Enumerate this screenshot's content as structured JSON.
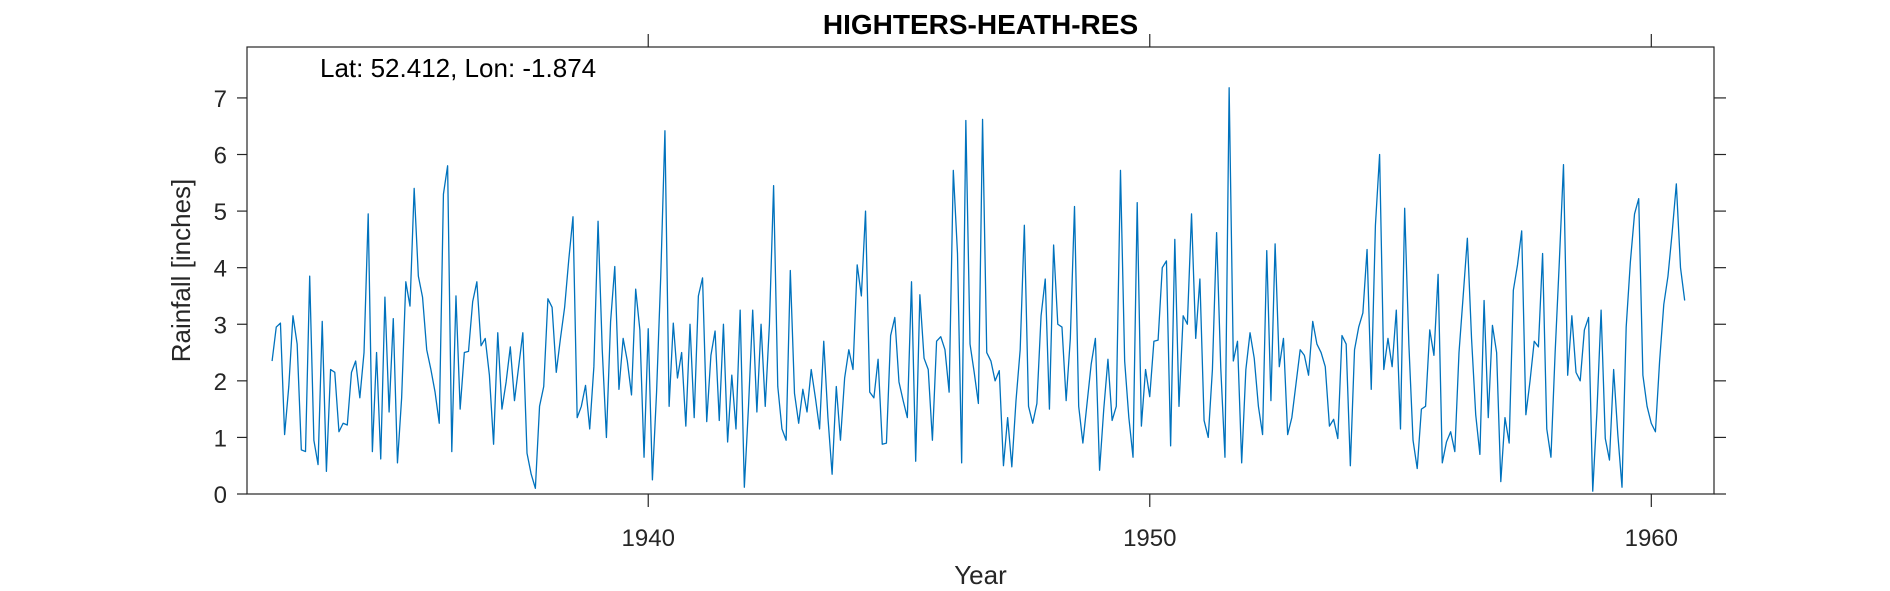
{
  "chart_data": {
    "type": "line",
    "title": "HIGHTERS-HEATH-RES",
    "xlabel": "Year",
    "ylabel": "Rainfall [inches]",
    "annotation": "Lat: 52.412, Lon: -1.874",
    "xlim": [
      1932.0,
      1961.25
    ],
    "ylim": [
      0,
      7.9
    ],
    "xticks": [
      1940,
      1950,
      1960
    ],
    "yticks": [
      0,
      1,
      2,
      3,
      4,
      5,
      6,
      7
    ],
    "grid": false,
    "series": [
      {
        "color": "#0072BD",
        "start_year": 1932.5,
        "step_years": 0.08333,
        "values": [
          2.35,
          2.95,
          3.02,
          1.05,
          1.9,
          3.15,
          2.65,
          0.78,
          0.75,
          3.85,
          0.95,
          0.52,
          3.05,
          0.4,
          2.2,
          2.15,
          1.1,
          1.25,
          1.22,
          2.15,
          2.35,
          1.7,
          2.5,
          4.95,
          0.75,
          2.5,
          0.62,
          3.48,
          1.45,
          3.1,
          0.55,
          1.7,
          3.75,
          3.32,
          5.4,
          3.85,
          3.48,
          2.55,
          2.2,
          1.8,
          1.25,
          5.3,
          5.8,
          0.75,
          3.5,
          1.5,
          2.5,
          2.52,
          3.4,
          3.75,
          2.62,
          2.75,
          2.1,
          0.88,
          2.85,
          1.5,
          1.98,
          2.6,
          1.65,
          2.25,
          2.85,
          0.72,
          0.35,
          0.1,
          1.55,
          1.9,
          3.45,
          3.3,
          2.15,
          2.75,
          3.3,
          4.15,
          4.9,
          1.35,
          1.55,
          1.92,
          1.15,
          2.25,
          4.82,
          2.55,
          1.0,
          3.05,
          4.02,
          1.85,
          2.75,
          2.35,
          1.75,
          3.62,
          2.9,
          0.65,
          2.92,
          0.25,
          1.8,
          3.85,
          6.42,
          1.55,
          3.02,
          2.05,
          2.5,
          1.2,
          3.0,
          1.35,
          3.5,
          3.82,
          1.28,
          2.45,
          2.88,
          1.3,
          3.0,
          0.92,
          2.1,
          1.15,
          3.25,
          0.12,
          1.55,
          3.25,
          1.45,
          3.0,
          1.55,
          3.0,
          5.45,
          1.9,
          1.15,
          0.95,
          3.95,
          1.78,
          1.25,
          1.85,
          1.45,
          2.2,
          1.7,
          1.15,
          2.7,
          1.35,
          0.35,
          1.9,
          0.95,
          2.05,
          2.55,
          2.2,
          4.05,
          3.5,
          5.0,
          1.8,
          1.7,
          2.38,
          0.88,
          0.9,
          2.8,
          3.12,
          1.98,
          1.65,
          1.35,
          3.75,
          0.58,
          3.52,
          2.4,
          2.2,
          0.95,
          2.7,
          2.78,
          2.55,
          1.8,
          5.72,
          4.25,
          0.55,
          6.6,
          2.65,
          2.15,
          1.6,
          6.62,
          2.5,
          2.35,
          2.0,
          2.18,
          0.5,
          1.35,
          0.48,
          1.65,
          2.55,
          4.75,
          1.55,
          1.25,
          1.6,
          3.15,
          3.8,
          1.5,
          4.4,
          3.0,
          2.95,
          1.65,
          2.75,
          5.08,
          1.55,
          0.9,
          1.6,
          2.3,
          2.75,
          0.42,
          1.5,
          2.38,
          1.3,
          1.55,
          5.72,
          2.35,
          1.35,
          0.65,
          5.15,
          1.2,
          2.2,
          1.72,
          2.7,
          2.72,
          4.0,
          4.12,
          0.85,
          4.5,
          1.55,
          3.15,
          3.0,
          4.95,
          2.75,
          3.8,
          1.3,
          1.0,
          2.2,
          4.62,
          2.22,
          0.65,
          7.18,
          2.35,
          2.7,
          0.55,
          2.2,
          2.85,
          2.4,
          1.55,
          1.05,
          4.3,
          1.65,
          4.42,
          2.25,
          2.75,
          1.05,
          1.35,
          1.95,
          2.55,
          2.45,
          2.1,
          3.05,
          2.65,
          2.5,
          2.25,
          1.2,
          1.32,
          0.98,
          2.8,
          2.65,
          0.5,
          2.55,
          2.95,
          3.2,
          4.32,
          1.85,
          4.75,
          6.0,
          2.2,
          2.75,
          2.25,
          3.25,
          1.15,
          5.05,
          2.65,
          0.95,
          0.45,
          1.5,
          1.55,
          2.9,
          2.45,
          3.88,
          0.55,
          0.92,
          1.1,
          0.75,
          2.5,
          3.5,
          4.52,
          2.75,
          1.4,
          0.7,
          3.42,
          1.35,
          2.98,
          2.5,
          0.22,
          1.35,
          0.9,
          3.6,
          4.05,
          4.65,
          1.4,
          2.0,
          2.7,
          2.6,
          4.25,
          1.15,
          0.65,
          2.5,
          4.1,
          5.82,
          2.1,
          3.15,
          2.15,
          2.0,
          2.9,
          3.12,
          0.05,
          1.45,
          3.25,
          0.98,
          0.6,
          2.2,
          1.05,
          0.12,
          2.95,
          4.1,
          4.95,
          5.22,
          2.1,
          1.55,
          1.25,
          1.1,
          2.35,
          3.35,
          3.85,
          4.62,
          5.48,
          4.0,
          3.42
        ]
      }
    ]
  }
}
